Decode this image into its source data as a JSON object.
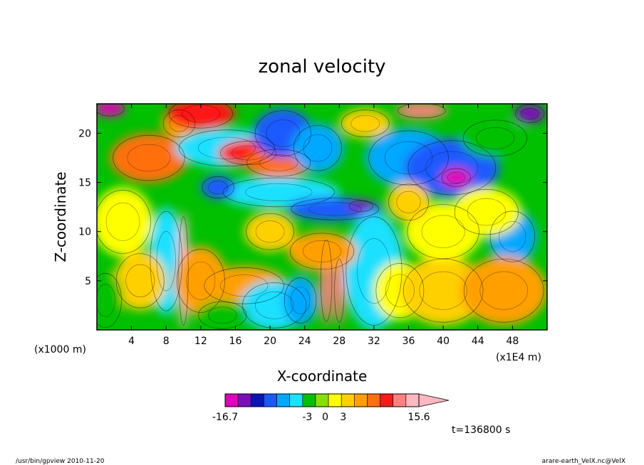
{
  "chart_data": {
    "type": "heatmap",
    "title": "zonal velocity",
    "xlabel": "X-coordinate",
    "ylabel": "Z-coordinate",
    "x_unit_left": "(x1000 m)",
    "x_unit_right": "(x1E4 m)",
    "xlim": [
      0,
      52
    ],
    "ylim": [
      0,
      23
    ],
    "x_ticks": [
      4,
      8,
      12,
      16,
      20,
      24,
      28,
      32,
      36,
      40,
      44,
      48
    ],
    "y_ticks": [
      5,
      10,
      15,
      20
    ],
    "colorbar": {
      "colors": [
        "#e000b8",
        "#7a10b8",
        "#0c14b4",
        "#1a5aff",
        "#00a8ff",
        "#1ee0ff",
        "#00c000",
        "#88e000",
        "#ffff00",
        "#ffd000",
        "#ffa000",
        "#ff7010",
        "#ff1818",
        "#ff8080",
        "#ffb8c0"
      ],
      "labels": [
        {
          "text": "-16.7",
          "value": -16.7
        },
        {
          "text": "-3",
          "value": -3
        },
        {
          "text": "0",
          "value": 0
        },
        {
          "text": "3",
          "value": 3
        },
        {
          "text": "15.6",
          "value": 15.6
        }
      ]
    },
    "blobs": [
      {
        "x": 1.5,
        "z": 22.5,
        "rx": 1.8,
        "rz": 0.8,
        "v": -16
      },
      {
        "x": 6.0,
        "z": 17.5,
        "rx": 4.5,
        "rz": 2.5,
        "v": 9
      },
      {
        "x": 9.5,
        "z": 21.0,
        "rx": 2.0,
        "rz": 1.5,
        "v": 5
      },
      {
        "x": 12.0,
        "z": 22.0,
        "rx": 4.0,
        "rz": 1.6,
        "v": 10
      },
      {
        "x": 15.0,
        "z": 18.5,
        "rx": 6.0,
        "rz": 2.0,
        "v": -4
      },
      {
        "x": 17.5,
        "z": 18.0,
        "rx": 3.5,
        "rz": 1.3,
        "v": 10
      },
      {
        "x": 21.0,
        "z": 17.0,
        "rx": 4.0,
        "rz": 1.5,
        "v": 7
      },
      {
        "x": 21.5,
        "z": 20.0,
        "rx": 3.5,
        "rz": 2.5,
        "v": -10
      },
      {
        "x": 25.5,
        "z": 18.5,
        "rx": 3.0,
        "rz": 2.5,
        "v": -7
      },
      {
        "x": 21.0,
        "z": 14.0,
        "rx": 7.0,
        "rz": 1.6,
        "v": -5
      },
      {
        "x": 14.0,
        "z": 14.5,
        "rx": 2.0,
        "rz": 1.2,
        "v": -10
      },
      {
        "x": 27.5,
        "z": 12.3,
        "rx": 5.5,
        "rz": 1.2,
        "v": -10
      },
      {
        "x": 30.5,
        "z": 12.6,
        "rx": 1.5,
        "rz": 0.6,
        "v": -14
      },
      {
        "x": 36.0,
        "z": 17.5,
        "rx": 5.0,
        "rz": 3.0,
        "v": -6
      },
      {
        "x": 41.0,
        "z": 16.5,
        "rx": 5.5,
        "rz": 3.0,
        "v": -10
      },
      {
        "x": 41.5,
        "z": 15.5,
        "rx": 1.8,
        "rz": 1.0,
        "v": -15
      },
      {
        "x": 46.0,
        "z": 19.5,
        "rx": 4.0,
        "rz": 2.0,
        "v": -3
      },
      {
        "x": 37.5,
        "z": 22.3,
        "rx": 3.0,
        "rz": 0.8,
        "v": 12
      },
      {
        "x": 50.0,
        "z": 22.0,
        "rx": 1.8,
        "rz": 1.0,
        "v": -14
      },
      {
        "x": 31.0,
        "z": 21.0,
        "rx": 3.0,
        "rz": 1.5,
        "v": 3
      },
      {
        "x": 48.0,
        "z": 9.5,
        "rx": 2.8,
        "rz": 2.8,
        "v": -8
      },
      {
        "x": 45.0,
        "z": 12.0,
        "rx": 4.0,
        "rz": 2.5,
        "v": 2
      },
      {
        "x": 3.0,
        "z": 11.0,
        "rx": 3.5,
        "rz": 3.5,
        "v": 2
      },
      {
        "x": 8.0,
        "z": 7.0,
        "rx": 2.0,
        "rz": 5.5,
        "v": -4
      },
      {
        "x": 10.0,
        "z": 6.0,
        "rx": 0.6,
        "rz": 6.0,
        "v": 14
      },
      {
        "x": 12.0,
        "z": 5.0,
        "rx": 3.0,
        "rz": 3.5,
        "v": 6
      },
      {
        "x": 17.0,
        "z": 4.5,
        "rx": 5.0,
        "rz": 2.0,
        "v": 5
      },
      {
        "x": 20.5,
        "z": 2.5,
        "rx": 4.0,
        "rz": 2.5,
        "v": -5
      },
      {
        "x": 14.5,
        "z": 1.5,
        "rx": 3.0,
        "rz": 1.5,
        "v": -3
      },
      {
        "x": 26.5,
        "z": 5.0,
        "rx": 0.7,
        "rz": 4.5,
        "v": 12
      },
      {
        "x": 28.0,
        "z": 4.0,
        "rx": 0.6,
        "rz": 3.5,
        "v": 12
      },
      {
        "x": 23.5,
        "z": 3.0,
        "rx": 2.0,
        "rz": 2.5,
        "v": -6
      },
      {
        "x": 32.0,
        "z": 6.0,
        "rx": 3.5,
        "rz": 6.0,
        "v": -4
      },
      {
        "x": 35.0,
        "z": 4.0,
        "rx": 3.0,
        "rz": 3.0,
        "v": 1
      },
      {
        "x": 40.0,
        "z": 4.0,
        "rx": 5.0,
        "rz": 3.5,
        "v": 4
      },
      {
        "x": 47.0,
        "z": 4.0,
        "rx": 5.0,
        "rz": 3.5,
        "v": 6
      },
      {
        "x": 40.0,
        "z": 10.0,
        "rx": 4.5,
        "rz": 3.0,
        "v": 2
      },
      {
        "x": 26.0,
        "z": 8.0,
        "rx": 4.0,
        "rz": 2.0,
        "v": 6
      },
      {
        "x": 20.0,
        "z": 10.0,
        "rx": 3.0,
        "rz": 2.0,
        "v": 4
      },
      {
        "x": 36.0,
        "z": 13.0,
        "rx": 2.5,
        "rz": 2.0,
        "v": 4
      },
      {
        "x": 5.0,
        "z": 5.0,
        "rx": 3.0,
        "rz": 3.0,
        "v": 3
      },
      {
        "x": 1.0,
        "z": 3.0,
        "rx": 2.0,
        "rz": 3.0,
        "v": -2
      }
    ]
  },
  "time_label": "t=136800 s",
  "footer": {
    "left": "/usr/bin/gpview 2010-11-20",
    "right": "arare-earth_VelX.nc@VelX"
  }
}
